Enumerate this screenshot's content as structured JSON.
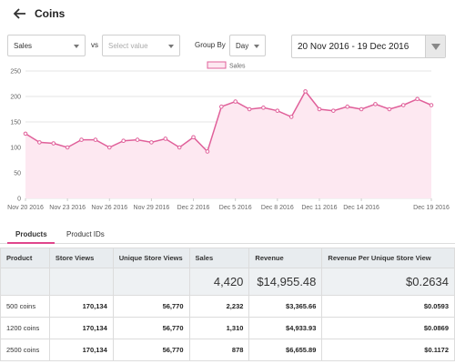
{
  "header": {
    "title": "Coins",
    "back_icon": "arrow-left-icon"
  },
  "controls": {
    "metric_select": "Sales",
    "vs_label": "vs",
    "compare_select_placeholder": "Select value",
    "group_by_label": "Group By",
    "group_by_select": "Day",
    "date_range": "20 Nov 2016 - 19 Dec 2016"
  },
  "chart_data": {
    "type": "area",
    "legend": [
      "Sales"
    ],
    "legend_placement": "top-center",
    "ylim": [
      0,
      250
    ],
    "y_ticks": [
      "0",
      "50",
      "100",
      "150",
      "200",
      "250"
    ],
    "x_tick_labels": [
      "Nov 20 2016",
      "Nov 23 2016",
      "Nov 26 2016",
      "Nov 29 2016",
      "Dec 2 2016",
      "Dec 5 2016",
      "Dec 8 2016",
      "Dec 11 2016",
      "Dec 14 2016",
      "Dec 19 2016"
    ],
    "x": [
      "2016-11-20",
      "2016-11-21",
      "2016-11-22",
      "2016-11-23",
      "2016-11-24",
      "2016-11-25",
      "2016-11-26",
      "2016-11-27",
      "2016-11-28",
      "2016-11-29",
      "2016-11-30",
      "2016-12-01",
      "2016-12-02",
      "2016-12-03",
      "2016-12-04",
      "2016-12-05",
      "2016-12-06",
      "2016-12-07",
      "2016-12-08",
      "2016-12-09",
      "2016-12-10",
      "2016-12-11",
      "2016-12-12",
      "2016-12-13",
      "2016-12-14",
      "2016-12-15",
      "2016-12-16",
      "2016-12-17",
      "2016-12-18",
      "2016-12-19"
    ],
    "series": [
      {
        "name": "Sales",
        "color": "#e0609a",
        "fill": "#fde8f1",
        "values": [
          127,
          110,
          108,
          100,
          115,
          115,
          100,
          113,
          115,
          110,
          117,
          100,
          120,
          92,
          180,
          190,
          175,
          178,
          172,
          160,
          210,
          175,
          172,
          180,
          175,
          185,
          175,
          183,
          195,
          183
        ]
      }
    ],
    "grid": true
  },
  "tabs": [
    {
      "label": "Products",
      "active": true
    },
    {
      "label": "Product IDs",
      "active": false
    }
  ],
  "table": {
    "columns": [
      "Product",
      "Store Views",
      "Unique Store Views",
      "Sales",
      "Revenue",
      "Revenue Per Unique Store View"
    ],
    "totals": {
      "sales": "4,420",
      "revenue": "$14,955.48",
      "rpusv": "$0.2634"
    },
    "rows": [
      [
        "500 coins",
        "170,134",
        "56,770",
        "2,232",
        "$3,365.66",
        "$0.0593"
      ],
      [
        "1200 coins",
        "170,134",
        "56,770",
        "1,310",
        "$4,933.93",
        "$0.0869"
      ],
      [
        "2500 coins",
        "170,134",
        "56,770",
        "878",
        "$6,655.89",
        "$0.1172"
      ]
    ]
  }
}
